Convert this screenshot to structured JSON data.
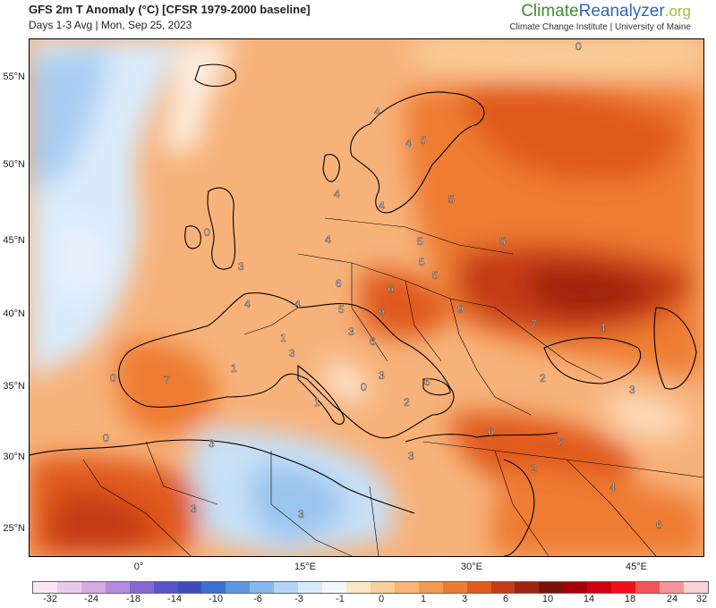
{
  "header": {
    "title": "GFS 2m T Anomaly (°C) [CFSR 1979-2000 baseline]",
    "subtitle": "Days 1-3 Avg | Mon, Sep 25, 2023"
  },
  "brand": {
    "name_part1": "Climate",
    "name_part2": "Reanalyzer",
    "name_part3": ".org",
    "tagline": "Climate Change Institute | University of Maine"
  },
  "map": {
    "lat_labels": [
      "55°N",
      "50°N",
      "45°N",
      "40°N",
      "35°N",
      "30°N",
      "25°N"
    ],
    "lon_labels": [
      "0°",
      "15°E",
      "30°E",
      "45°E"
    ],
    "anomaly_labels": [
      "0",
      "4",
      "4",
      "5",
      "5",
      "4",
      "4",
      "4",
      "5",
      "5",
      "5",
      "3",
      "5",
      "0",
      "5",
      "6",
      "6",
      "4",
      "4",
      "5",
      "6",
      "9",
      "7",
      "4",
      "3",
      "7",
      "1",
      "3",
      "6",
      "1",
      "0",
      "2",
      "3",
      "1",
      "6",
      "3",
      "2",
      "0",
      "0",
      "6",
      "7",
      "3",
      "3",
      "2",
      "4",
      "3",
      "3",
      "6"
    ]
  },
  "colorbar": {
    "labels": [
      "-32",
      "-24",
      "-18",
      "-14",
      "-10",
      "-6",
      "-3",
      "-1",
      "0",
      "1",
      "3",
      "6",
      "10",
      "14",
      "18",
      "24",
      "32"
    ],
    "colors": [
      "#fbe6f5",
      "#ecc8ee",
      "#d7a9e7",
      "#b68ae0",
      "#8468d4",
      "#5a52c8",
      "#3f4bbd",
      "#3c6fce",
      "#5d96e0",
      "#86b7ee",
      "#b2d5f7",
      "#d8ebfb",
      "#f4f8fc",
      "#fce7c6",
      "#fbd09c",
      "#f9b675",
      "#f49a4f",
      "#ee7c30",
      "#e05a1e",
      "#c43a15",
      "#9e2410",
      "#7a120c",
      "#a6000a",
      "#d2000e",
      "#f20f1b",
      "#f5545b",
      "#f7969a",
      "#fad2d4"
    ],
    "accent": "#ee7c30"
  }
}
